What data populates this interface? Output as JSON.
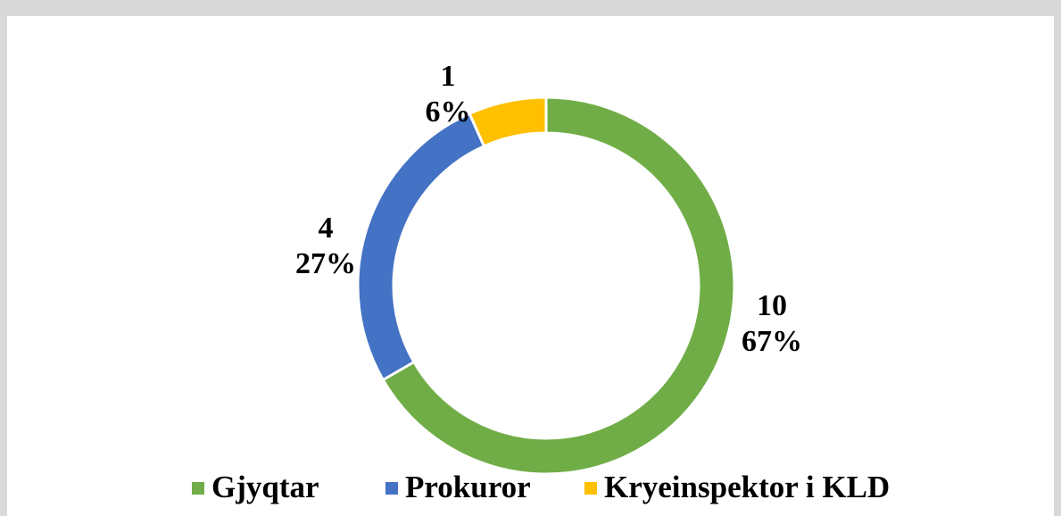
{
  "chart_data": {
    "type": "donut",
    "categories": [
      "Gjyqtar",
      "Prokuror",
      "Kryeinspektor i KLD"
    ],
    "values": [
      10,
      4,
      1
    ],
    "percentages": [
      "67%",
      "27%",
      "6%"
    ],
    "colors": [
      "#70ad47",
      "#4472c4",
      "#ffc000"
    ],
    "legend": "bottom"
  }
}
